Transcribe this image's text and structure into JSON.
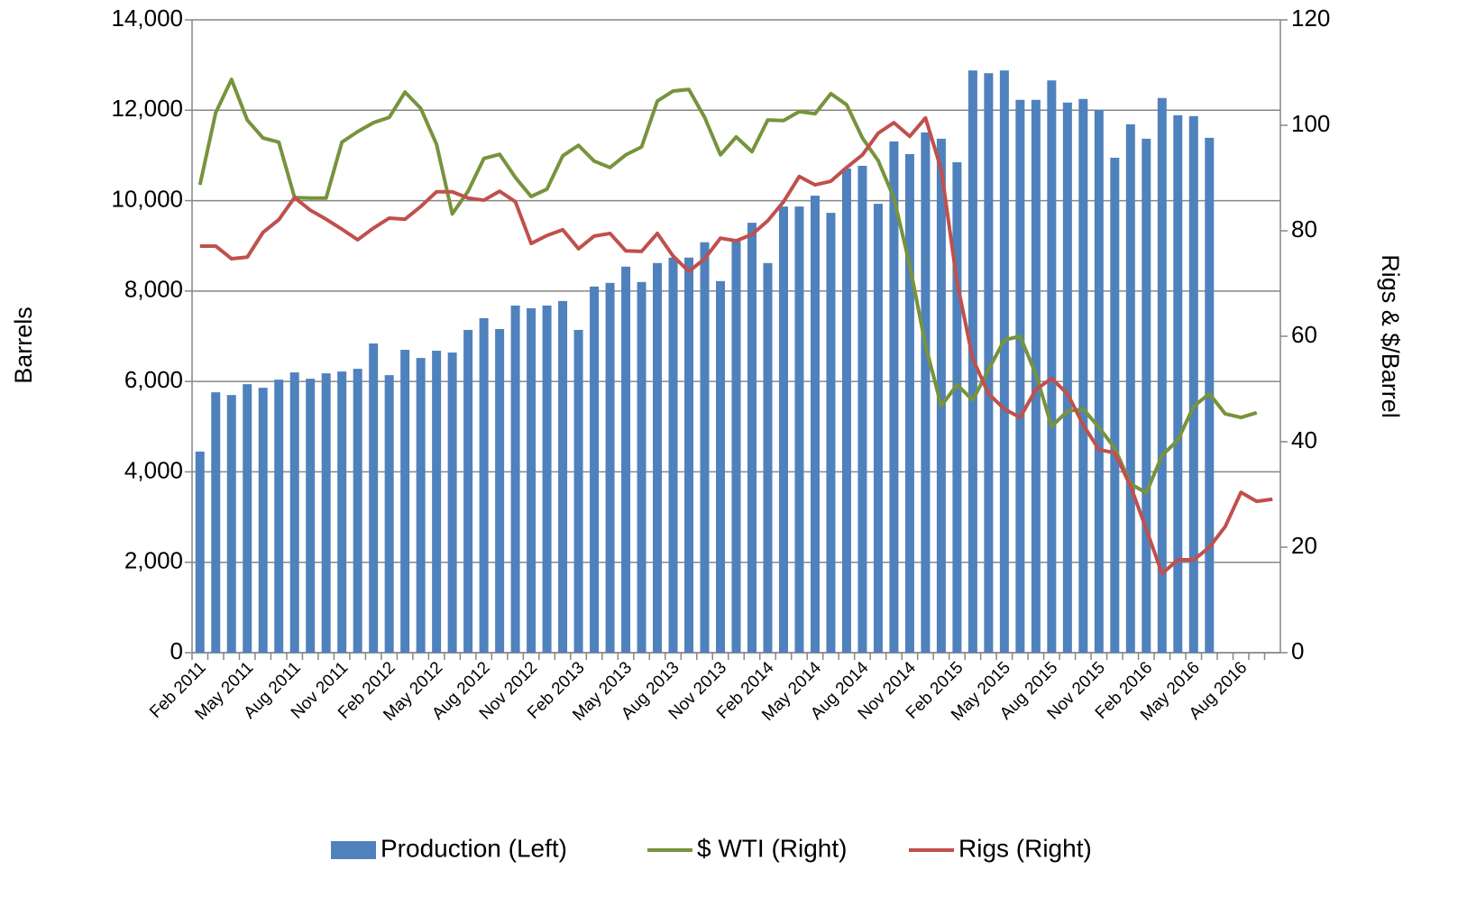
{
  "chart_data": {
    "type": "bar-line",
    "y_label": "Barrels",
    "y2_label": "Rigs & $/Barrel",
    "categories": [
      "Feb 2011",
      null,
      null,
      "May 2011",
      null,
      null,
      "Aug 2011",
      null,
      null,
      "Nov 2011",
      null,
      null,
      "Feb 2012",
      null,
      null,
      "May 2012",
      null,
      null,
      "Aug 2012",
      null,
      null,
      "Nov 2012",
      null,
      null,
      "Feb 2013",
      null,
      null,
      "May 2013",
      null,
      null,
      "Aug 2013",
      null,
      null,
      "Nov 2013",
      null,
      null,
      "Feb 2014",
      null,
      null,
      "May 2014",
      null,
      null,
      "Aug 2014",
      null,
      null,
      "Nov 2014",
      null,
      null,
      "Feb 2015",
      null,
      null,
      "May 2015",
      null,
      null,
      "Aug 2015",
      null,
      null,
      "Nov 2015",
      null,
      null,
      "Feb 2016",
      null,
      null,
      "May 2016",
      null,
      null,
      "Aug 2016",
      null,
      null
    ],
    "series": [
      {
        "name": "Production (Left)",
        "type": "bar",
        "color": "#4f81bd",
        "values": [
          4450,
          5760,
          5700,
          5940,
          5860,
          6040,
          6200,
          6060,
          6180,
          6220,
          6280,
          6840,
          6140,
          6700,
          6520,
          6680,
          6640,
          7140,
          7400,
          7160,
          7680,
          7620,
          7680,
          7780,
          7140,
          8100,
          8180,
          8540,
          8200,
          8620,
          8740,
          8740,
          9080,
          8220,
          9100,
          9510,
          8620,
          9870,
          9870,
          10110,
          9730,
          10710,
          10770,
          9930,
          11310,
          11030,
          11510,
          11370,
          10850,
          12880,
          12820,
          12880,
          12230,
          12230,
          12660,
          12170,
          12250,
          12010,
          10950,
          11690,
          11370,
          12270,
          11890,
          11870,
          11390,
          null,
          null,
          null,
          null
        ]
      },
      {
        "name": "$ WTI (Right)",
        "type": "line",
        "axis": "y2",
        "color": "#77933c",
        "values": [
          88.7,
          102.4,
          108.7,
          101,
          97.6,
          96.8,
          86.3,
          86.2,
          86.2,
          96.8,
          98.8,
          100.5,
          101.5,
          106.3,
          103.2,
          96.4,
          83.2,
          87.5,
          93.7,
          94.5,
          90.1,
          86.5,
          87.9,
          94.2,
          96.2,
          93.2,
          92,
          94.4,
          95.9,
          104.6,
          106.5,
          106.8,
          101.5,
          94.4,
          97.8,
          95,
          101,
          100.9,
          102.6,
          102.2,
          106,
          103.9,
          97.6,
          93.3,
          86.2,
          73.5,
          58.3,
          46.8,
          50.8,
          47.9,
          53.7,
          59.3,
          60,
          52.8,
          42.9,
          45.8,
          46.2,
          42.7,
          38.8,
          32,
          30.3,
          37.4,
          40.3,
          46.7,
          49.1,
          45.3,
          44.6,
          45.5,
          null
        ]
      },
      {
        "name": "Rigs (Right)",
        "type": "line",
        "axis": "y2",
        "color": "#c0504d",
        "values": [
          77.1,
          77.1,
          74.7,
          75,
          79.7,
          82.1,
          86.3,
          83.9,
          82.2,
          80.3,
          78.3,
          80.5,
          82.4,
          82.2,
          84.6,
          87.4,
          87.4,
          86.2,
          85.8,
          87.5,
          85.5,
          77.6,
          79.1,
          80.2,
          76.6,
          79,
          79.5,
          76.2,
          76.1,
          79.5,
          75.2,
          72.3,
          74.7,
          78.6,
          78.1,
          79.3,
          81.9,
          85.5,
          90.3,
          88.7,
          89.4,
          92,
          94.4,
          98.5,
          100.5,
          97.9,
          101.4,
          91.6,
          70.3,
          55.7,
          49.1,
          46.2,
          44.6,
          49.9,
          52,
          49.1,
          43.2,
          38.5,
          37.9,
          31.6,
          23.4,
          15,
          17.6,
          17.6,
          20,
          23.9,
          30.4,
          28.7,
          29.1
        ]
      }
    ],
    "ylim": [
      0,
      14000
    ],
    "yticks": [
      0,
      {
        "value": 2000,
        "label": "2,000"
      },
      {
        "value": 4000,
        "label": "4,000"
      },
      {
        "value": 6000,
        "label": "6,000"
      },
      {
        "value": 8000,
        "label": "8,000"
      },
      {
        "value": 10000,
        "label": "10,000"
      },
      {
        "value": 12000,
        "label": "12,000"
      },
      {
        "value": 14000,
        "label": "14,000"
      }
    ],
    "y2lim": [
      0,
      120
    ],
    "y2ticks": [
      0,
      20,
      40,
      60,
      80,
      100,
      120
    ],
    "grid": true,
    "legend": "bottom"
  }
}
